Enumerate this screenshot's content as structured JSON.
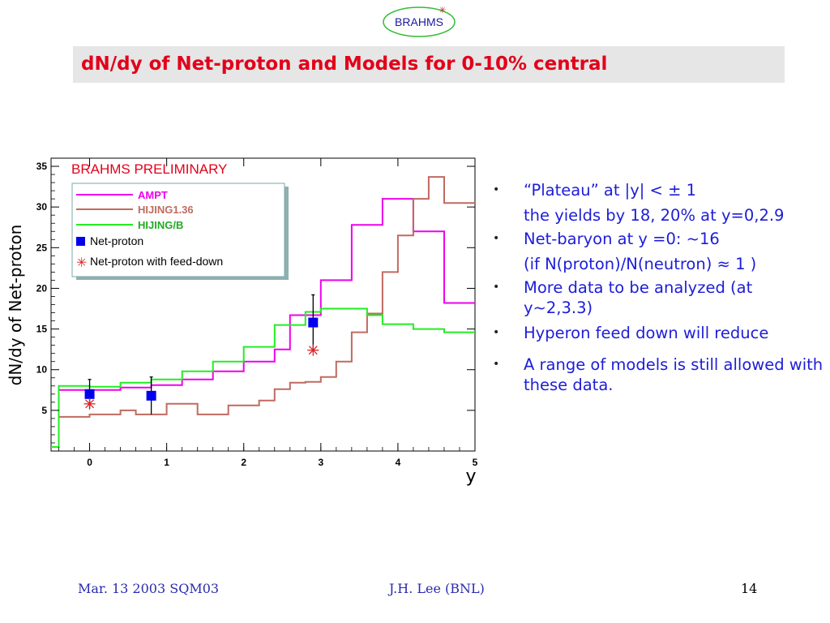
{
  "logo": {
    "text": "BRAHMS"
  },
  "title": "dN/dy of Net-proton and Models for 0-10% central",
  "chart_data": {
    "type": "line",
    "watermark": "BRAHMS PRELIMINARY",
    "xlabel": "y",
    "ylabel": "dN/dy of Net-proton",
    "xlim": [
      -0.5,
      5
    ],
    "ylim": [
      0,
      36
    ],
    "xticks": [
      0,
      1,
      2,
      3,
      4,
      5
    ],
    "yticks": [
      5,
      10,
      15,
      20,
      25,
      30,
      35
    ],
    "legend_position": "top-left",
    "colors": {
      "AMPT": "#ee00ee",
      "HIJING1.36": "#c06a60",
      "HIJING/B": "#22ee22",
      "data": "#0000ee",
      "feeddown": "#dd2222"
    },
    "edges": [
      -0.5,
      -0.4,
      -0.2,
      0.0,
      0.2,
      0.4,
      0.6,
      0.8,
      1.0,
      1.2,
      1.4,
      1.6,
      1.8,
      2.0,
      2.2,
      2.4,
      2.6,
      2.8,
      3.0,
      3.2,
      3.4,
      3.6,
      3.8,
      4.0,
      4.2,
      4.4,
      4.6,
      4.8,
      5.0
    ],
    "series": [
      {
        "name": "AMPT",
        "style": "step",
        "values": [
          0.5,
          7.5,
          7.5,
          7.5,
          7.5,
          7.8,
          7.8,
          8.1,
          8.1,
          8.8,
          8.8,
          9.8,
          9.8,
          11.0,
          11.0,
          12.5,
          16.7,
          16.7,
          21.0,
          21.0,
          27.8,
          27.8,
          31.0,
          31.0,
          27.0,
          27.0,
          18.2,
          18.2
        ]
      },
      {
        "name": "HIJING1.36",
        "style": "step",
        "values": [
          0.5,
          4.2,
          4.2,
          4.5,
          4.5,
          5.0,
          4.5,
          4.5,
          5.8,
          5.8,
          4.5,
          4.5,
          5.6,
          5.6,
          6.2,
          7.6,
          8.4,
          8.5,
          9.1,
          11.0,
          14.6,
          16.9,
          22.0,
          26.5,
          31.0,
          33.7,
          30.5,
          30.5
        ]
      },
      {
        "name": "HIJING/B",
        "style": "step",
        "values": [
          0.5,
          8.0,
          8.0,
          7.9,
          7.9,
          8.4,
          8.4,
          8.8,
          8.8,
          9.8,
          9.8,
          11.0,
          11.0,
          12.8,
          12.8,
          15.5,
          15.5,
          17.1,
          17.5,
          17.5,
          17.5,
          16.7,
          15.6,
          15.6,
          15.0,
          15.0,
          14.6,
          14.6
        ]
      }
    ],
    "points": [
      {
        "name": "Net-proton",
        "marker": "square",
        "x": [
          0.0,
          0.8,
          2.9
        ],
        "y": [
          7.0,
          6.8,
          15.8
        ],
        "err": [
          1.8,
          2.3,
          3.4
        ]
      },
      {
        "name": "Net-proton with feed-down",
        "marker": "star",
        "x": [
          0.0,
          2.9
        ],
        "y": [
          5.8,
          12.4
        ]
      }
    ]
  },
  "bullets": [
    {
      "text": "“Plateau” at |y| < ± 1",
      "sub": "the yields by 18, 20% at y=0,2.9"
    },
    {
      "text": "Net-baryon at y =0: ~16",
      "sub": "(if N(proton)/N(neutron) ≈ 1 )"
    },
    {
      "text": "More data to be analyzed (at y~2,3.3)",
      "sub": ""
    },
    {
      "text": "Hyperon feed down will reduce",
      "sub": ""
    },
    {
      "text": "A range of models is still allowed with these data.",
      "sub": ""
    }
  ],
  "bullet_marker": "•",
  "footer": {
    "left": "Mar. 13  2003 SQM03",
    "center": "J.H. Lee (BNL)",
    "page": "14"
  }
}
